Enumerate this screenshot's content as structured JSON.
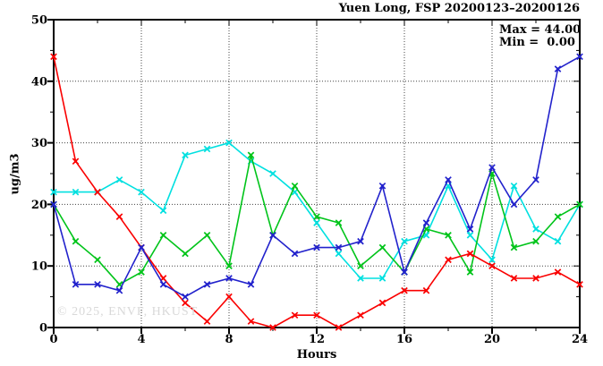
{
  "title": "Yuen Long, FSP 20200123–20200126",
  "stats": {
    "max_label": "Max = 44.00",
    "min_label": "Min =  0.00"
  },
  "watermark": "© 2025, ENVF, HKUST",
  "chart_data": {
    "type": "line",
    "title": "Yuen Long, FSP 20200123–20200126",
    "xlabel": "Hours",
    "ylabel": "ug/m3",
    "xlim": [
      0,
      24
    ],
    "ylim": [
      0,
      50
    ],
    "xticks_major": [
      0,
      4,
      8,
      12,
      16,
      20,
      24
    ],
    "xtick_minor_step": 2,
    "yticks_major": [
      0,
      10,
      20,
      30,
      40,
      50
    ],
    "ytick_minor_step": 5,
    "grid": "dotted black at major x (4..20) and major y (10..40)",
    "legend_position": "top-right-inside-text-only",
    "annotations": [
      "Max = 44.00",
      "Min =  0.00"
    ],
    "x": [
      0,
      1,
      2,
      3,
      4,
      5,
      6,
      7,
      8,
      9,
      10,
      11,
      12,
      13,
      14,
      15,
      16,
      17,
      18,
      19,
      20,
      21,
      22,
      23,
      24
    ],
    "series": [
      {
        "name": "cyan-series",
        "color": "#00e0e0",
        "values": [
          22,
          22,
          22,
          24,
          22,
          19,
          28,
          29,
          30,
          27,
          25,
          22,
          17,
          12,
          8,
          8,
          14,
          15,
          23,
          15,
          11,
          23,
          16,
          14,
          20
        ]
      },
      {
        "name": "green-series",
        "color": "#00c41a",
        "values": [
          20,
          14,
          11,
          7,
          9,
          15,
          12,
          15,
          10,
          28,
          15,
          23,
          18,
          17,
          10,
          13,
          9,
          16,
          15,
          9,
          25,
          13,
          14,
          18,
          20
        ]
      },
      {
        "name": "red-series",
        "color": "#fa0000",
        "values": [
          44,
          27,
          22,
          18,
          13,
          8,
          4,
          1,
          5,
          1,
          0,
          2,
          2,
          0,
          2,
          4,
          6,
          6,
          11,
          12,
          10,
          8,
          8,
          9,
          7
        ]
      },
      {
        "name": "blue-series",
        "color": "#2222cc",
        "values": [
          20,
          7,
          7,
          6,
          13,
          7,
          5,
          7,
          8,
          7,
          15,
          12,
          13,
          13,
          14,
          23,
          9,
          17,
          24,
          16,
          26,
          20,
          24,
          42,
          44
        ]
      }
    ]
  }
}
